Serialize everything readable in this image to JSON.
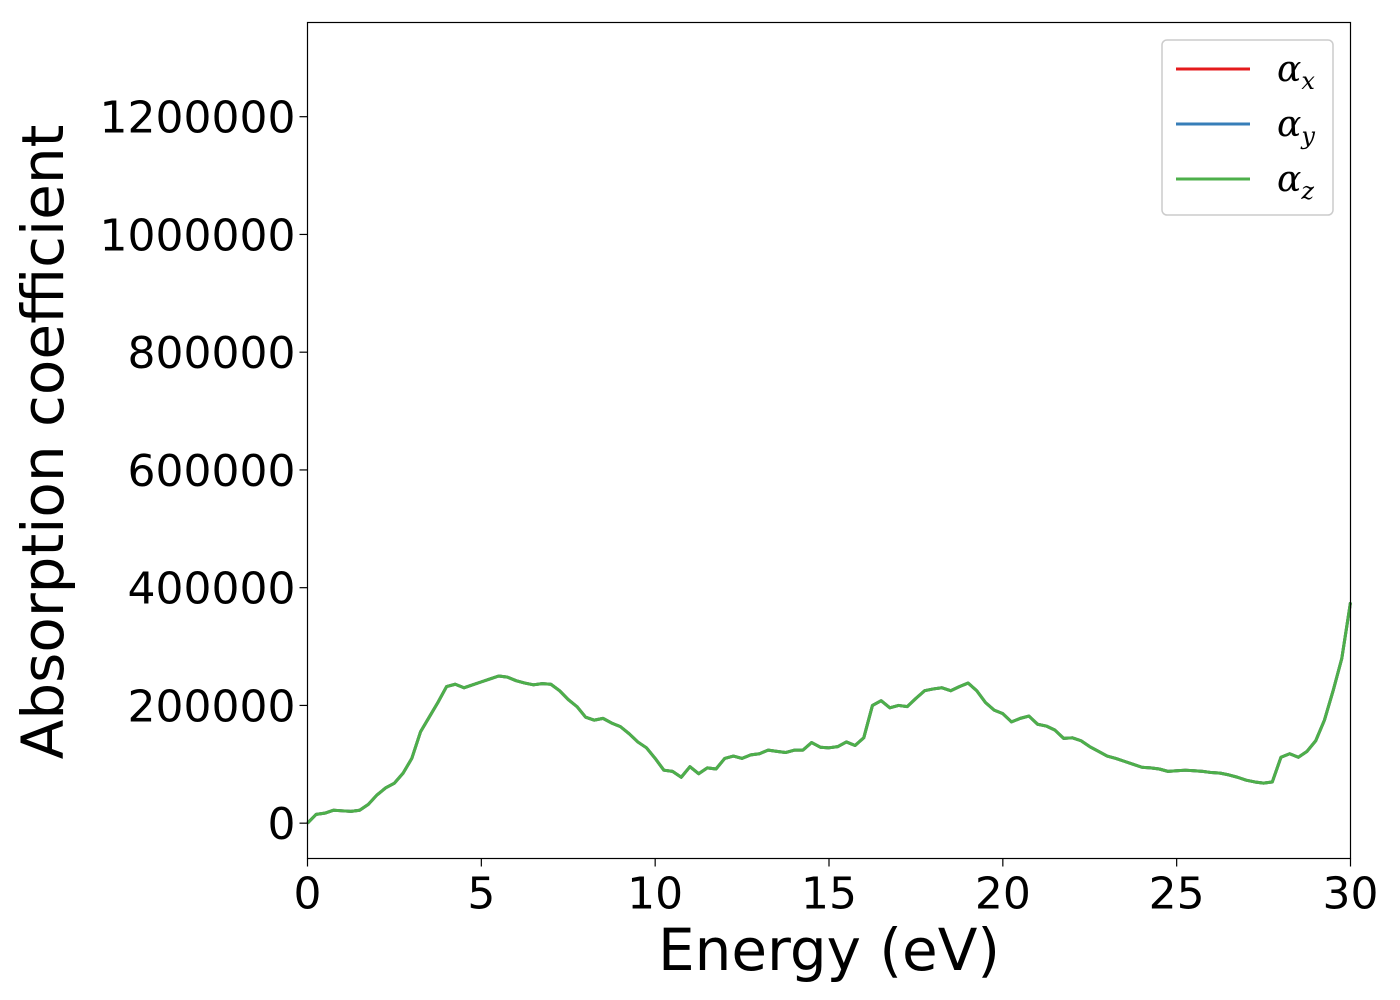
{
  "chart_data": {
    "type": "line",
    "xlabel": "Energy (eV)",
    "ylabel": "Absorption coefficient",
    "xlim": [
      0,
      30
    ],
    "ylim": [
      -60000,
      1360000
    ],
    "xticks": [
      0,
      5,
      10,
      15,
      20,
      25,
      30
    ],
    "yticks": [
      0,
      200000,
      400000,
      600000,
      800000,
      1000000,
      1200000
    ],
    "xtick_labels": [
      "0",
      "5",
      "10",
      "15",
      "20",
      "25",
      "30"
    ],
    "ytick_labels": [
      "0",
      "200000",
      "400000",
      "600000",
      "800000",
      "1000000",
      "1200000"
    ],
    "grid": false,
    "legend_position": "top-right",
    "x": [
      0,
      0.25,
      0.5,
      0.75,
      1.0,
      1.25,
      1.5,
      1.75,
      2.0,
      2.25,
      2.5,
      2.75,
      3.0,
      3.25,
      3.5,
      3.75,
      4.0,
      4.25,
      4.5,
      4.75,
      5.0,
      5.25,
      5.5,
      5.75,
      6.0,
      6.25,
      6.5,
      6.75,
      7.0,
      7.25,
      7.5,
      7.75,
      8.0,
      8.25,
      8.5,
      8.75,
      9.0,
      9.25,
      9.5,
      9.75,
      10.0,
      10.25,
      10.5,
      10.75,
      11.0,
      11.25,
      11.5,
      11.75,
      12.0,
      12.25,
      12.5,
      12.75,
      13.0,
      13.25,
      13.5,
      13.75,
      14.0,
      14.25,
      14.5,
      14.75,
      15.0,
      15.25,
      15.5,
      15.75,
      16.0,
      16.25,
      16.5,
      16.75,
      17.0,
      17.25,
      17.5,
      17.75,
      18.0,
      18.25,
      18.5,
      18.75,
      19.0,
      19.25,
      19.5,
      19.75,
      20.0,
      20.25,
      20.5,
      20.75,
      21.0,
      21.25,
      21.5,
      21.75,
      22.0,
      22.25,
      22.5,
      22.75,
      23.0,
      23.25,
      23.5,
      23.75,
      24.0,
      24.25,
      24.5,
      24.75,
      25.0,
      25.25,
      25.5,
      25.75,
      26.0,
      26.25,
      26.5,
      26.75,
      27.0,
      27.25,
      27.5,
      27.75,
      28.0,
      28.25,
      28.5,
      28.75,
      29.0,
      29.25,
      29.5,
      29.75,
      30.0
    ],
    "series": [
      {
        "name": "α_x",
        "label_main": "α",
        "label_sub": "x",
        "color": "#e41a1c",
        "values": [
          0,
          15000,
          17000,
          22000,
          21000,
          20000,
          22000,
          32000,
          48000,
          60000,
          68000,
          85000,
          110000,
          155000,
          180000,
          205000,
          232000,
          236000,
          230000,
          235000,
          240000,
          245000,
          250000,
          248000,
          242000,
          238000,
          235000,
          237000,
          236000,
          225000,
          210000,
          198000,
          180000,
          175000,
          178000,
          170000,
          164000,
          152000,
          138000,
          128000,
          110000,
          90000,
          88000,
          78000,
          96000,
          84000,
          94000,
          92000,
          110000,
          114000,
          110000,
          116000,
          118000,
          124000,
          122000,
          120000,
          124000,
          124000,
          137000,
          129000,
          128000,
          130000,
          138000,
          132000,
          145000,
          200000,
          208000,
          196000,
          200000,
          198000,
          212000,
          225000,
          228000,
          230000,
          225000,
          232000,
          238000,
          225000,
          205000,
          192000,
          186000,
          172000,
          178000,
          182000,
          168000,
          165000,
          158000,
          144000,
          145000,
          140000,
          130000,
          122000,
          114000,
          110000,
          105000,
          100000,
          95000,
          94000,
          92000,
          88000,
          89000,
          90000,
          89000,
          88000,
          86000,
          85000,
          82000,
          78000,
          73000,
          70000,
          68000,
          70000,
          112000,
          118000,
          112000,
          122000,
          140000,
          175000,
          225000,
          280000,
          375000
        ]
      },
      {
        "name": "α_y",
        "label_main": "α",
        "label_sub": "y",
        "color": "#377eb8",
        "values": [
          0,
          15000,
          17000,
          22000,
          21000,
          20000,
          22000,
          32000,
          48000,
          60000,
          68000,
          85000,
          110000,
          155000,
          180000,
          205000,
          232000,
          236000,
          230000,
          235000,
          240000,
          245000,
          250000,
          248000,
          242000,
          238000,
          235000,
          237000,
          236000,
          225000,
          210000,
          198000,
          180000,
          175000,
          178000,
          170000,
          164000,
          152000,
          138000,
          128000,
          110000,
          90000,
          88000,
          78000,
          96000,
          84000,
          94000,
          92000,
          110000,
          114000,
          110000,
          116000,
          118000,
          124000,
          122000,
          120000,
          124000,
          124000,
          137000,
          129000,
          128000,
          130000,
          138000,
          132000,
          145000,
          200000,
          208000,
          196000,
          200000,
          198000,
          212000,
          225000,
          228000,
          230000,
          225000,
          232000,
          238000,
          225000,
          205000,
          192000,
          186000,
          172000,
          178000,
          182000,
          168000,
          165000,
          158000,
          144000,
          145000,
          140000,
          130000,
          122000,
          114000,
          110000,
          105000,
          100000,
          95000,
          94000,
          92000,
          88000,
          89000,
          90000,
          89000,
          88000,
          86000,
          85000,
          82000,
          78000,
          73000,
          70000,
          68000,
          70000,
          112000,
          118000,
          112000,
          122000,
          140000,
          175000,
          225000,
          280000,
          375000
        ]
      },
      {
        "name": "α_z",
        "label_main": "α",
        "label_sub": "z",
        "color": "#4daf4a",
        "values": [
          0,
          15000,
          17000,
          22000,
          21000,
          20000,
          22000,
          32000,
          48000,
          60000,
          68000,
          85000,
          110000,
          155000,
          180000,
          205000,
          232000,
          236000,
          230000,
          235000,
          240000,
          245000,
          250000,
          248000,
          242000,
          238000,
          235000,
          237000,
          236000,
          225000,
          210000,
          198000,
          180000,
          175000,
          178000,
          170000,
          164000,
          152000,
          138000,
          128000,
          110000,
          90000,
          88000,
          78000,
          96000,
          84000,
          94000,
          92000,
          110000,
          114000,
          110000,
          116000,
          118000,
          124000,
          122000,
          120000,
          124000,
          124000,
          137000,
          129000,
          128000,
          130000,
          138000,
          132000,
          145000,
          200000,
          208000,
          196000,
          200000,
          198000,
          212000,
          225000,
          228000,
          230000,
          225000,
          232000,
          238000,
          225000,
          205000,
          192000,
          186000,
          172000,
          178000,
          182000,
          168000,
          165000,
          158000,
          144000,
          145000,
          140000,
          130000,
          122000,
          114000,
          110000,
          105000,
          100000,
          95000,
          94000,
          92000,
          88000,
          89000,
          90000,
          89000,
          88000,
          86000,
          85000,
          82000,
          78000,
          73000,
          70000,
          68000,
          70000,
          112000,
          118000,
          112000,
          122000,
          140000,
          175000,
          225000,
          280000,
          375000
        ]
      }
    ]
  }
}
